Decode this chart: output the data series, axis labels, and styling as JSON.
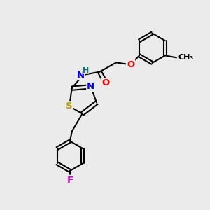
{
  "bg_color": "#ebebeb",
  "bond_color": "#000000",
  "bond_width": 1.5,
  "atom_colors": {
    "S": "#b8a000",
    "N": "#0000ff",
    "O": "#ff0000",
    "F": "#cc00cc",
    "H": "#008080",
    "C": "#000000"
  },
  "font_size_atom": 9.5,
  "font_size_small": 8.5
}
